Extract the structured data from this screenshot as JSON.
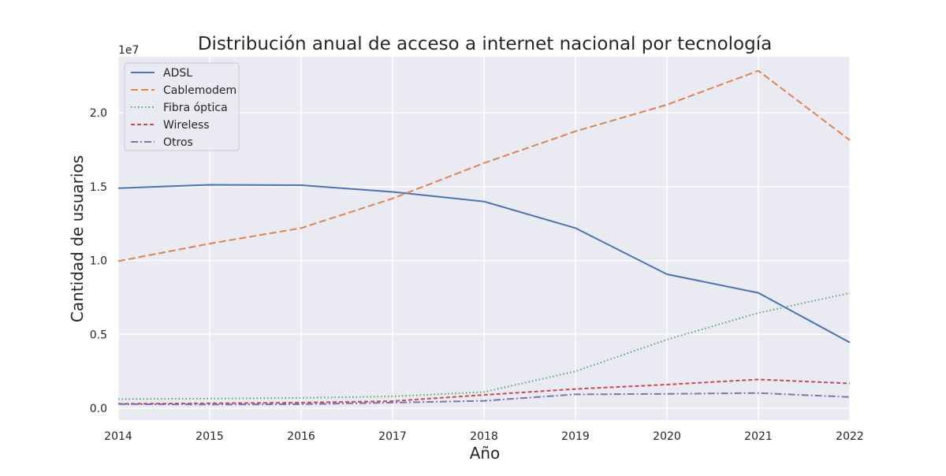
{
  "chart_data": {
    "type": "line",
    "title": "Distribución anual de acceso a internet nacional por tecnología",
    "xlabel": "Año",
    "ylabel": "Cantidad de usuarios",
    "y_multiplier_label": "1e7",
    "x": [
      2014,
      2015,
      2016,
      2017,
      2018,
      2019,
      2020,
      2021,
      2022
    ],
    "x_tick_labels": [
      "2014",
      "2015",
      "2016",
      "2017",
      "2018",
      "2019",
      "2020",
      "2021",
      "2022"
    ],
    "y_ticks": [
      0,
      5000000,
      10000000,
      15000000,
      20000000
    ],
    "y_tick_labels": [
      "0.0",
      "0.5",
      "1.0",
      "1.5",
      "2.0"
    ],
    "xlim": [
      2014,
      2022
    ],
    "ylim": [
      -800000,
      23800000
    ],
    "grid": true,
    "legend_position": "top-left",
    "series": [
      {
        "name": "ADSL",
        "color": "#4c72b0",
        "dash": "solid",
        "values": [
          14900000,
          15130000,
          15100000,
          14650000,
          14000000,
          12200000,
          9070000,
          7810000,
          4450000
        ]
      },
      {
        "name": "Cablemodem",
        "color": "#dd8452",
        "dash": "dashed",
        "values": [
          9960000,
          11150000,
          12200000,
          14200000,
          16600000,
          18750000,
          20550000,
          22850000,
          18150000
        ]
      },
      {
        "name": "Fibra óptica",
        "color": "#55a868",
        "dash": "dotted",
        "values": [
          620000,
          650000,
          700000,
          800000,
          1100000,
          2500000,
          4650000,
          6450000,
          7800000
        ]
      },
      {
        "name": "Wireless",
        "color": "#c44e52",
        "dash": "densedash",
        "values": [
          300000,
          330000,
          380000,
          480000,
          900000,
          1300000,
          1600000,
          1950000,
          1680000
        ]
      },
      {
        "name": "Otros",
        "color": "#8172b3",
        "dash": "dashdot",
        "values": [
          280000,
          250000,
          270000,
          380000,
          500000,
          940000,
          970000,
          1030000,
          760000
        ]
      }
    ]
  }
}
